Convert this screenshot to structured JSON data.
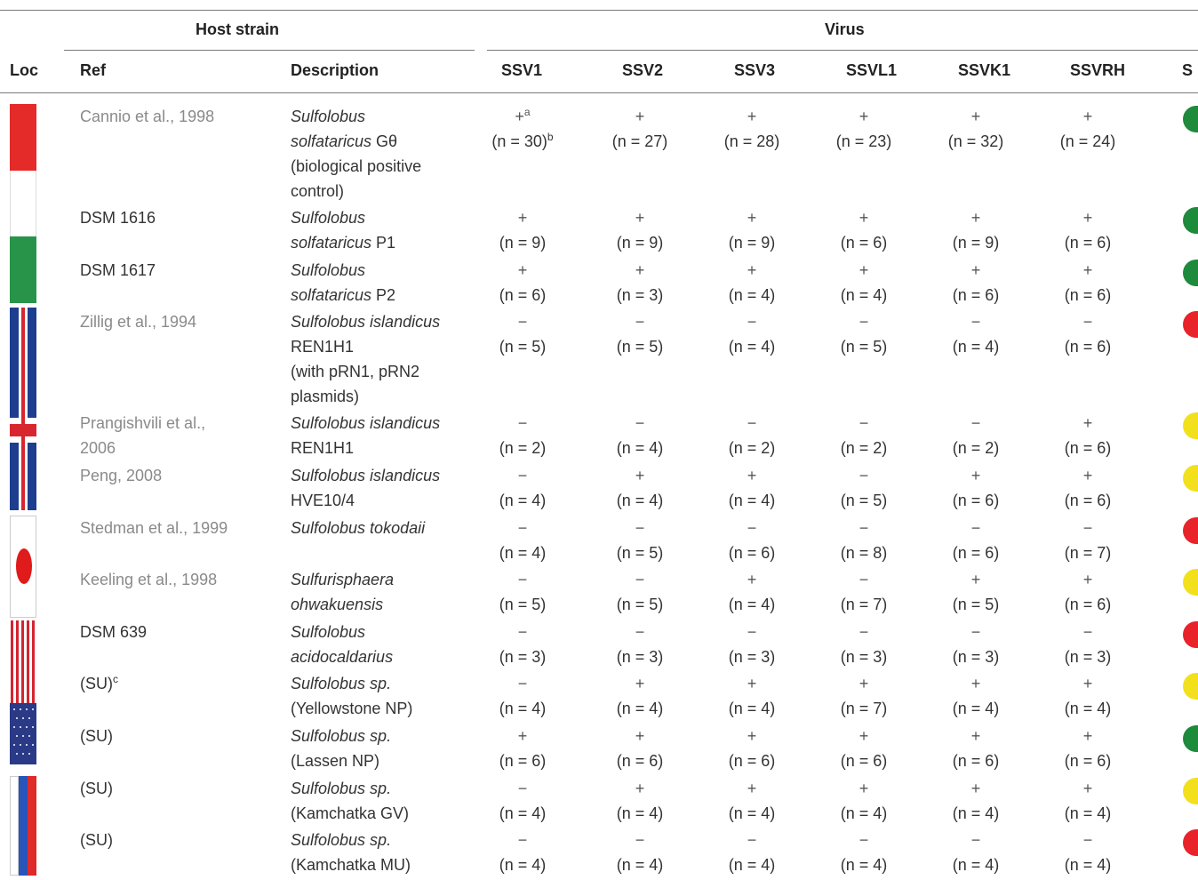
{
  "headers": {
    "host_strain": "Host strain",
    "virus": "Virus",
    "loc": "Loc",
    "ref": "Ref",
    "description": "Description",
    "viruses": [
      "SSV1",
      "SSV2",
      "SSV3",
      "SSVL1",
      "SSVK1",
      "SSVRH"
    ],
    "last": "S"
  },
  "colors": {
    "green": "#1e8a3c",
    "red": "#e8232a",
    "yellow": "#f2e01c"
  },
  "rows": [
    {
      "ref": "Cannio et al., 1998",
      "ref_sup": "",
      "ref_style": "gray",
      "desc": [
        [
          "Sulfolobus",
          "i"
        ],
        [
          "solfataricus",
          "i",
          " Gθ"
        ],
        [
          "(biological positive",
          ""
        ],
        [
          "control)",
          ""
        ]
      ],
      "cells": [
        [
          "+",
          "(n = 30)"
        ],
        [
          "+",
          "(n = 27)"
        ],
        [
          "+",
          "(n = 28)"
        ],
        [
          "+",
          "(n = 23)"
        ],
        [
          "+",
          "(n = 32)"
        ],
        [
          "+",
          "(n = 24)"
        ]
      ],
      "status": "green"
    },
    {
      "ref": "DSM 1616",
      "ref_sup": "",
      "ref_style": "dark",
      "desc": [
        [
          "Sulfolobus",
          "i"
        ],
        [
          "solfataricus",
          "i",
          " P1"
        ]
      ],
      "cells": [
        [
          "+",
          "(n = 9)"
        ],
        [
          "+",
          "(n = 9)"
        ],
        [
          "+",
          "(n = 9)"
        ],
        [
          "+",
          "(n = 6)"
        ],
        [
          "+",
          "(n = 9)"
        ],
        [
          "+",
          "(n = 6)"
        ]
      ],
      "status": "green"
    },
    {
      "ref": "DSM 1617",
      "ref_sup": "",
      "ref_style": "dark",
      "desc": [
        [
          "Sulfolobus",
          "i"
        ],
        [
          "solfataricus",
          "i",
          " P2"
        ]
      ],
      "cells": [
        [
          "+",
          "(n = 6)"
        ],
        [
          "+",
          "(n = 3)"
        ],
        [
          "+",
          "(n = 4)"
        ],
        [
          "+",
          "(n = 4)"
        ],
        [
          "+",
          "(n = 6)"
        ],
        [
          "+",
          "(n = 6)"
        ]
      ],
      "status": "green"
    },
    {
      "ref": "Zillig et al., 1994",
      "ref_sup": "",
      "ref_style": "gray",
      "desc": [
        [
          "Sulfolobus islandicus",
          "i"
        ],
        [
          "REN1H1",
          ""
        ],
        [
          "(with pRN1, pRN2",
          ""
        ],
        [
          "plasmids)",
          ""
        ]
      ],
      "cells": [
        [
          "−",
          "(n = 5)"
        ],
        [
          "−",
          "(n = 5)"
        ],
        [
          "−",
          "(n = 4)"
        ],
        [
          "−",
          "(n = 5)"
        ],
        [
          "−",
          "(n = 4)"
        ],
        [
          "−",
          "(n = 6)"
        ]
      ],
      "status": "red"
    },
    {
      "ref": "Prangishvili et al.,",
      "ref2": "2006",
      "ref_sup": "",
      "ref_style": "gray",
      "desc": [
        [
          "Sulfolobus islandicus",
          "i"
        ],
        [
          "REN1H1",
          ""
        ]
      ],
      "cells": [
        [
          "−",
          "(n = 2)"
        ],
        [
          "−",
          "(n = 4)"
        ],
        [
          "−",
          "(n = 2)"
        ],
        [
          "−",
          "(n = 2)"
        ],
        [
          "−",
          "(n = 2)"
        ],
        [
          "+",
          "(n = 6)"
        ]
      ],
      "status": "yellow"
    },
    {
      "ref": "Peng, 2008",
      "ref_sup": "",
      "ref_style": "gray",
      "desc": [
        [
          "Sulfolobus islandicus",
          "i"
        ],
        [
          "HVE10/4",
          ""
        ]
      ],
      "cells": [
        [
          "−",
          "(n = 4)"
        ],
        [
          "+",
          "(n = 4)"
        ],
        [
          "+",
          "(n = 4)"
        ],
        [
          "−",
          "(n = 5)"
        ],
        [
          "+",
          "(n = 6)"
        ],
        [
          "+",
          "(n = 6)"
        ]
      ],
      "status": "yellow"
    },
    {
      "ref": "Stedman et al., 1999",
      "ref_sup": "",
      "ref_style": "gray",
      "desc": [
        [
          "Sulfolobus tokodaii",
          "i"
        ]
      ],
      "cells": [
        [
          "−",
          "(n = 4)"
        ],
        [
          "−",
          "(n = 5)"
        ],
        [
          "−",
          "(n = 6)"
        ],
        [
          "−",
          "(n = 8)"
        ],
        [
          "−",
          "(n = 6)"
        ],
        [
          "−",
          "(n = 7)"
        ]
      ],
      "status": "red"
    },
    {
      "ref": "Keeling et al., 1998",
      "ref_sup": "",
      "ref_style": "gray",
      "desc": [
        [
          "Sulfurisphaera",
          "i"
        ],
        [
          "ohwakuensis",
          "i"
        ]
      ],
      "cells": [
        [
          "−",
          "(n = 5)"
        ],
        [
          "−",
          "(n = 5)"
        ],
        [
          "+",
          "(n = 4)"
        ],
        [
          "−",
          "(n = 7)"
        ],
        [
          "+",
          "(n = 5)"
        ],
        [
          "+",
          "(n = 6)"
        ]
      ],
      "status": "yellow"
    },
    {
      "ref": "DSM 639",
      "ref_sup": "",
      "ref_style": "dark",
      "desc": [
        [
          "Sulfolobus",
          "i"
        ],
        [
          "acidocaldarius",
          "i"
        ]
      ],
      "cells": [
        [
          "−",
          "(n = 3)"
        ],
        [
          "−",
          "(n = 3)"
        ],
        [
          "−",
          "(n = 3)"
        ],
        [
          "−",
          "(n = 3)"
        ],
        [
          "−",
          "(n = 3)"
        ],
        [
          "−",
          "(n = 3)"
        ]
      ],
      "status": "red"
    },
    {
      "ref": "(SU)",
      "ref_sup": "c",
      "ref_style": "dark",
      "desc": [
        [
          "Sulfolobus sp.",
          "i"
        ],
        [
          "(Yellowstone NP)",
          ""
        ]
      ],
      "cells": [
        [
          "−",
          "(n = 4)"
        ],
        [
          "+",
          "(n = 4)"
        ],
        [
          "+",
          "(n = 4)"
        ],
        [
          "+",
          "(n = 7)"
        ],
        [
          "+",
          "(n = 4)"
        ],
        [
          "+",
          "(n = 4)"
        ]
      ],
      "status": "yellow"
    },
    {
      "ref": "(SU)",
      "ref_sup": "",
      "ref_style": "dark",
      "desc": [
        [
          "Sulfolobus sp.",
          "i"
        ],
        [
          "(Lassen NP)",
          ""
        ]
      ],
      "cells": [
        [
          "+",
          "(n = 6)"
        ],
        [
          "+",
          "(n = 6)"
        ],
        [
          "+",
          "(n = 6)"
        ],
        [
          "+",
          "(n = 6)"
        ],
        [
          "+",
          "(n = 6)"
        ],
        [
          "+",
          "(n = 6)"
        ]
      ],
      "status": "green"
    },
    {
      "ref": "(SU)",
      "ref_sup": "",
      "ref_style": "dark",
      "desc": [
        [
          "Sulfolobus sp.",
          "i"
        ],
        [
          "(Kamchatka GV)",
          ""
        ]
      ],
      "cells": [
        [
          "−",
          "(n = 4)"
        ],
        [
          "+",
          "(n = 4)"
        ],
        [
          "+",
          "(n = 4)"
        ],
        [
          "+",
          "(n = 4)"
        ],
        [
          "+",
          "(n = 4)"
        ],
        [
          "+",
          "(n = 4)"
        ]
      ],
      "status": "yellow"
    },
    {
      "ref": "(SU)",
      "ref_sup": "",
      "ref_style": "dark",
      "desc": [
        [
          "Sulfolobus sp.",
          "i"
        ],
        [
          "(Kamchatka MU)",
          ""
        ]
      ],
      "cells": [
        [
          "−",
          "(n = 4)"
        ],
        [
          "−",
          "(n = 4)"
        ],
        [
          "−",
          "(n = 4)"
        ],
        [
          "−",
          "(n = 4)"
        ],
        [
          "−",
          "(n = 4)"
        ],
        [
          "−",
          "(n = 4)"
        ]
      ],
      "status": "red"
    }
  ],
  "first_cell_sups": {
    "sym": "a",
    "count": "b"
  },
  "flags": [
    "italy-flag",
    "iceland-flag",
    "japan-flag",
    "usa-flag",
    "russia-flag"
  ]
}
